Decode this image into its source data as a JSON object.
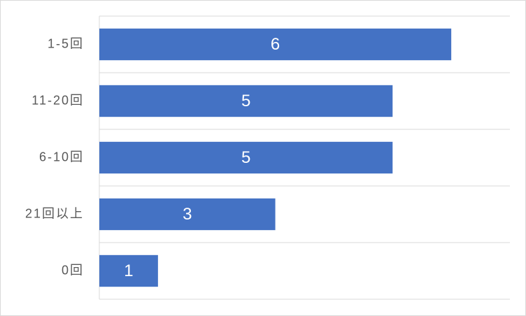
{
  "chart_data": {
    "type": "bar",
    "orientation": "horizontal",
    "categories": [
      "1-5回",
      "11-20回",
      "6-10回",
      "21回以上",
      "0回"
    ],
    "values": [
      6,
      5,
      5,
      3,
      1
    ],
    "color": "#4472c4",
    "xlim": [
      0,
      7
    ]
  }
}
